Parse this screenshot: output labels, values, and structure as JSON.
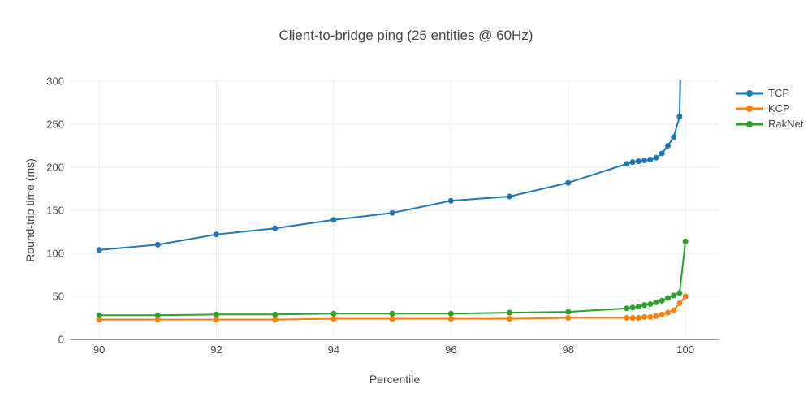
{
  "chart_data": {
    "type": "line",
    "title": "Client-to-bridge ping (25 entities @ 60Hz)",
    "xlabel": "Percentile",
    "ylabel": "Round-trip time (ms)",
    "legend_position": "right",
    "grid": true,
    "xlim": [
      89.5,
      100.58
    ],
    "ylim": [
      0,
      300
    ],
    "xticks": [
      90,
      92,
      94,
      96,
      98,
      100
    ],
    "yticks": [
      0,
      50,
      100,
      150,
      200,
      250,
      300
    ],
    "x": [
      90,
      91,
      92,
      93,
      94,
      95,
      96,
      97,
      98,
      99,
      99.1,
      99.2,
      99.3,
      99.4,
      99.5,
      99.6,
      99.7,
      99.8,
      99.9,
      100
    ],
    "series": [
      {
        "name": "TCP",
        "color": "#1f77b4",
        "clipped_at_top": true,
        "values": [
          104,
          110,
          122,
          129,
          139,
          147,
          161,
          166,
          182,
          204,
          206,
          207,
          208,
          209,
          211,
          216,
          225,
          235,
          259,
          600
        ]
      },
      {
        "name": "KCP",
        "color": "#ff7f0e",
        "clipped_at_top": false,
        "values": [
          23,
          23,
          23,
          23,
          24,
          24,
          24,
          24,
          25,
          25,
          25,
          25,
          26,
          26,
          27,
          29,
          31,
          34,
          42,
          50
        ]
      },
      {
        "name": "RakNet",
        "color": "#2ca02c",
        "clipped_at_top": false,
        "values": [
          28,
          28,
          29,
          29,
          30,
          30,
          30,
          31,
          32,
          36,
          37,
          38,
          40,
          41,
          43,
          45,
          48,
          51,
          54,
          114
        ]
      }
    ],
    "style": {
      "grid_color": "#ebebeb",
      "zeroline_color": "#9b9b9b",
      "text_color": "#444444",
      "background": "#ffffff"
    }
  }
}
